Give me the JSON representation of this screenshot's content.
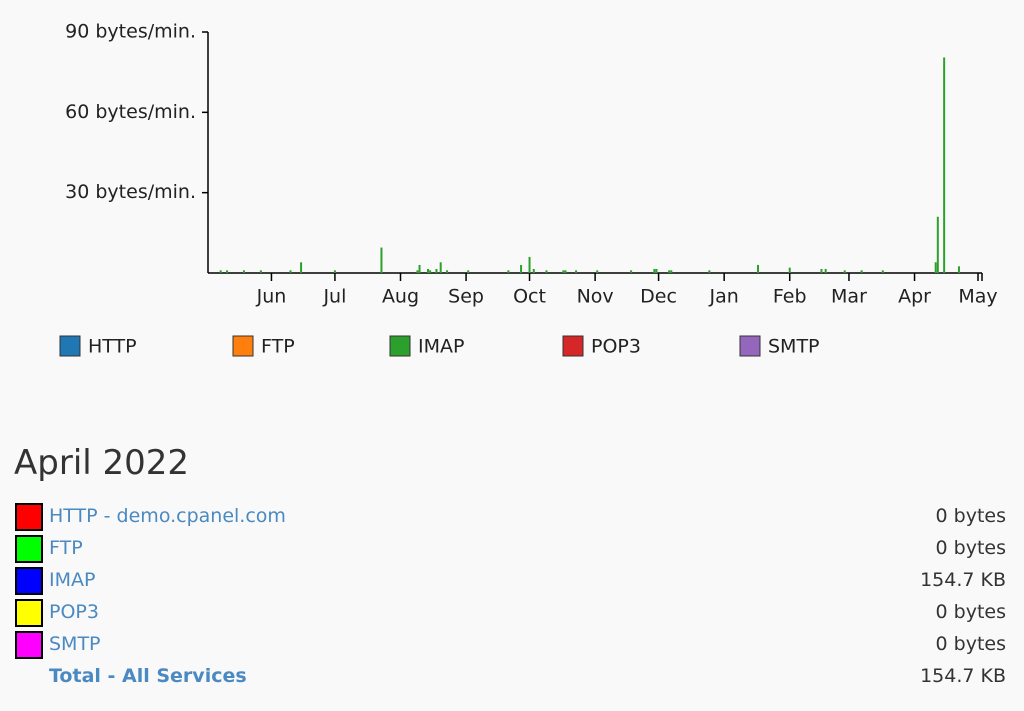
{
  "chart_data": {
    "type": "bar",
    "ylim": [
      0,
      90
    ],
    "yticks": [
      {
        "value": 30,
        "label": "30 bytes/min."
      },
      {
        "value": 60,
        "label": "60 bytes/min."
      },
      {
        "value": 90,
        "label": "90 bytes/min."
      }
    ],
    "categories": [
      null,
      null,
      null,
      null,
      null,
      null,
      null,
      null,
      null,
      null,
      null,
      null,
      null,
      null,
      null,
      null,
      null,
      null,
      null,
      null,
      null,
      null,
      null,
      null,
      null,
      null,
      null,
      null,
      null,
      null,
      "Jun",
      null,
      null,
      null,
      null,
      null,
      null,
      null,
      null,
      null,
      null,
      null,
      null,
      null,
      null,
      null,
      null,
      null,
      null,
      null,
      null,
      null,
      null,
      null,
      null,
      null,
      null,
      null,
      null,
      null,
      "Jul",
      null,
      null,
      null,
      null,
      null,
      null,
      null,
      null,
      null,
      null,
      null,
      null,
      null,
      null,
      null,
      null,
      null,
      null,
      null,
      null,
      null,
      null,
      null,
      null,
      null,
      null,
      null,
      null,
      null,
      null,
      "Aug",
      null,
      null,
      null,
      null,
      null,
      null,
      null,
      null,
      null,
      null,
      null,
      null,
      null,
      null,
      null,
      null,
      null,
      null,
      null,
      null,
      null,
      null,
      null,
      null,
      null,
      null,
      null,
      null,
      null,
      null,
      "Sep",
      null,
      null,
      null,
      null,
      null,
      null,
      null,
      null,
      null,
      null,
      null,
      null,
      null,
      null,
      null,
      null,
      null,
      null,
      null,
      null,
      null,
      null,
      null,
      null,
      null,
      null,
      null,
      null,
      null,
      "Oct",
      null,
      null,
      null,
      null,
      null,
      null,
      null,
      null,
      null,
      null,
      null,
      null,
      null,
      null,
      null,
      null,
      null,
      null,
      null,
      null,
      null,
      null,
      null,
      null,
      null,
      null,
      null,
      null,
      null,
      null,
      "Nov",
      null,
      null,
      null,
      null,
      null,
      null,
      null,
      null,
      null,
      null,
      null,
      null,
      null,
      null,
      null,
      null,
      null,
      null,
      null,
      null,
      null,
      null,
      null,
      null,
      null,
      null,
      null,
      null,
      null,
      "Dec",
      null,
      null,
      null,
      null,
      null,
      null,
      null,
      null,
      null,
      null,
      null,
      null,
      null,
      null,
      null,
      null,
      null,
      null,
      null,
      null,
      null,
      null,
      null,
      null,
      null,
      null,
      null,
      null,
      null,
      null,
      "Jan",
      null,
      null,
      null,
      null,
      null,
      null,
      null,
      null,
      null,
      null,
      null,
      null,
      null,
      null,
      null,
      null,
      null,
      null,
      null,
      null,
      null,
      null,
      null,
      null,
      null,
      null,
      null,
      null,
      null,
      null,
      "Feb",
      null,
      null,
      null,
      null,
      null,
      null,
      null,
      null,
      null,
      null,
      null,
      null,
      null,
      null,
      null,
      null,
      null,
      null,
      null,
      null,
      null,
      null,
      null,
      null,
      null,
      null,
      null,
      "Mar",
      null,
      null,
      null,
      null,
      null,
      null,
      null,
      null,
      null,
      null,
      null,
      null,
      null,
      null,
      null,
      null,
      null,
      null,
      null,
      null,
      null,
      null,
      null,
      null,
      null,
      null,
      null,
      null,
      null,
      null,
      "Apr",
      null,
      null,
      null,
      null,
      null,
      null,
      null,
      null,
      null,
      null,
      null,
      null,
      null,
      null,
      null,
      null,
      null,
      null,
      null,
      null,
      null,
      null,
      null,
      null,
      null,
      null,
      null,
      null,
      null,
      "May"
    ],
    "series": [
      {
        "name": "HTTP",
        "color": "#1f77b4"
      },
      {
        "name": "FTP",
        "color": "#ff7f0e"
      },
      {
        "name": "IMAP",
        "color": "#2ca02c",
        "values": [
          0,
          0,
          0,
          0,
          0,
          0,
          1,
          0,
          0,
          1,
          0,
          0,
          0,
          0,
          0,
          0,
          0,
          1,
          0,
          0,
          0,
          0,
          0,
          0,
          0,
          1,
          0,
          0,
          0,
          0,
          0,
          0,
          0,
          0,
          0,
          0,
          0,
          0,
          0,
          1,
          0,
          0,
          0,
          0,
          4,
          0,
          0,
          0,
          0,
          0,
          0,
          0,
          0,
          0,
          0,
          0,
          0,
          0,
          0,
          0,
          1,
          0,
          0,
          0,
          0,
          0,
          0,
          0,
          0,
          0,
          0,
          0,
          0,
          0,
          0,
          0,
          0,
          0,
          0,
          0,
          0,
          0,
          9.5,
          0,
          0,
          0,
          0,
          0,
          0,
          0,
          0,
          0,
          0,
          0,
          0,
          0,
          0,
          0,
          0,
          1,
          3,
          0,
          0,
          0,
          1.5,
          1,
          0,
          0,
          1.5,
          0,
          4,
          0,
          0,
          1,
          0,
          0,
          0,
          0,
          0,
          0,
          0,
          0,
          0,
          1,
          0,
          0,
          0,
          0,
          0,
          0,
          0,
          0,
          0,
          0,
          0,
          0,
          0,
          0,
          0,
          0,
          0,
          0,
          1,
          0,
          0,
          0,
          0,
          0,
          3,
          0,
          0,
          0,
          6,
          0,
          1.5,
          0,
          0,
          0,
          0,
          0,
          1,
          0,
          0,
          0,
          0,
          0,
          0,
          0,
          1,
          1,
          0,
          0,
          0,
          0,
          1,
          0,
          0,
          0,
          0,
          0,
          0,
          0,
          0,
          0,
          1,
          0,
          0,
          0,
          0,
          0,
          0,
          0,
          0,
          0,
          0,
          0,
          0,
          0,
          0,
          0,
          1,
          0,
          0,
          0,
          0,
          0,
          0,
          0,
          0,
          0,
          0,
          1.5,
          1.5,
          0,
          0,
          0,
          0,
          0,
          1,
          1,
          0,
          0,
          0,
          0,
          0,
          0,
          0,
          0,
          0,
          0,
          0,
          0,
          0,
          0,
          0,
          0,
          0,
          1,
          0,
          0,
          0,
          0,
          0,
          0,
          0,
          0,
          0,
          0,
          0,
          0,
          0,
          0,
          0,
          0,
          0,
          0,
          0,
          0,
          0,
          0,
          3,
          0,
          0,
          0,
          0,
          0,
          0,
          0,
          0,
          0,
          0,
          0,
          0,
          0,
          0,
          2,
          0,
          0,
          0,
          0,
          0,
          0,
          0,
          0,
          0,
          0,
          0,
          0,
          0,
          0,
          1.5,
          0,
          1.5,
          0,
          0,
          0,
          0,
          0,
          0,
          0,
          0,
          1,
          0,
          0,
          0,
          0,
          0,
          0,
          0,
          1,
          0,
          0,
          0,
          0,
          0,
          0,
          0,
          0,
          0,
          1,
          0,
          0,
          0,
          0,
          0,
          0,
          0,
          0,
          0,
          0,
          0,
          0,
          0,
          0,
          0,
          0,
          0,
          0,
          0,
          0,
          0,
          0,
          0,
          0,
          4,
          21,
          0,
          0,
          80.5,
          0,
          0,
          0,
          0,
          0,
          0,
          2.5,
          0,
          0,
          0,
          0,
          0,
          0,
          0,
          0,
          0
        ]
      },
      {
        "name": "POP3",
        "color": "#d62728"
      },
      {
        "name": "SMTP",
        "color": "#9467bd"
      }
    ]
  },
  "summary": {
    "title": "April 2022",
    "rows": [
      {
        "label": "HTTP - demo.cpanel.com",
        "color": "#ff0000",
        "value": "0 bytes"
      },
      {
        "label": "FTP",
        "color": "#00ff00",
        "value": "0 bytes"
      },
      {
        "label": "IMAP",
        "color": "#0000ff",
        "value": "154.7 KB"
      },
      {
        "label": "POP3",
        "color": "#ffff00",
        "value": "0 bytes"
      },
      {
        "label": "SMTP",
        "color": "#ff00ff",
        "value": "0 bytes"
      }
    ],
    "total": {
      "label": "Total - All Services",
      "value": "154.7 KB"
    }
  }
}
